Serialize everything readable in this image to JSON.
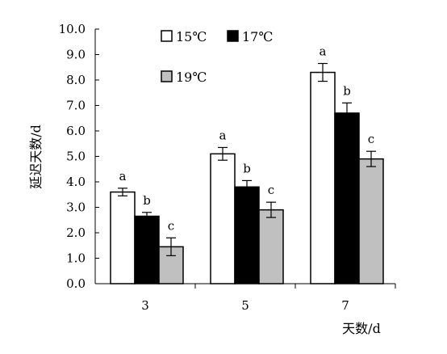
{
  "chart_data": {
    "type": "bar",
    "title": "",
    "xlabel": "天数/d",
    "ylabel": "延迟天数/d",
    "ylim": [
      0,
      10
    ],
    "yticks": [
      "0.0",
      "1.0",
      "2.0",
      "3.0",
      "4.0",
      "5.0",
      "6.0",
      "7.0",
      "8.0",
      "9.0",
      "10.0"
    ],
    "categories": [
      "3",
      "5",
      "7"
    ],
    "legend_position": "top-left",
    "grid": false,
    "series": [
      {
        "name": "15℃",
        "color": "#ffffff",
        "values": [
          3.6,
          5.1,
          8.3
        ],
        "errors": [
          0.15,
          0.25,
          0.35
        ],
        "labels": [
          "a",
          "a",
          "a"
        ]
      },
      {
        "name": "17℃",
        "color": "#000000",
        "values": [
          2.65,
          3.8,
          6.7
        ],
        "errors": [
          0.15,
          0.25,
          0.4
        ],
        "labels": [
          "b",
          "b",
          "b"
        ]
      },
      {
        "name": "19℃",
        "color": "#c0c0c0",
        "values": [
          1.45,
          2.9,
          4.9
        ],
        "errors": [
          0.35,
          0.3,
          0.3
        ],
        "labels": [
          "c",
          "c",
          "c"
        ]
      }
    ]
  }
}
